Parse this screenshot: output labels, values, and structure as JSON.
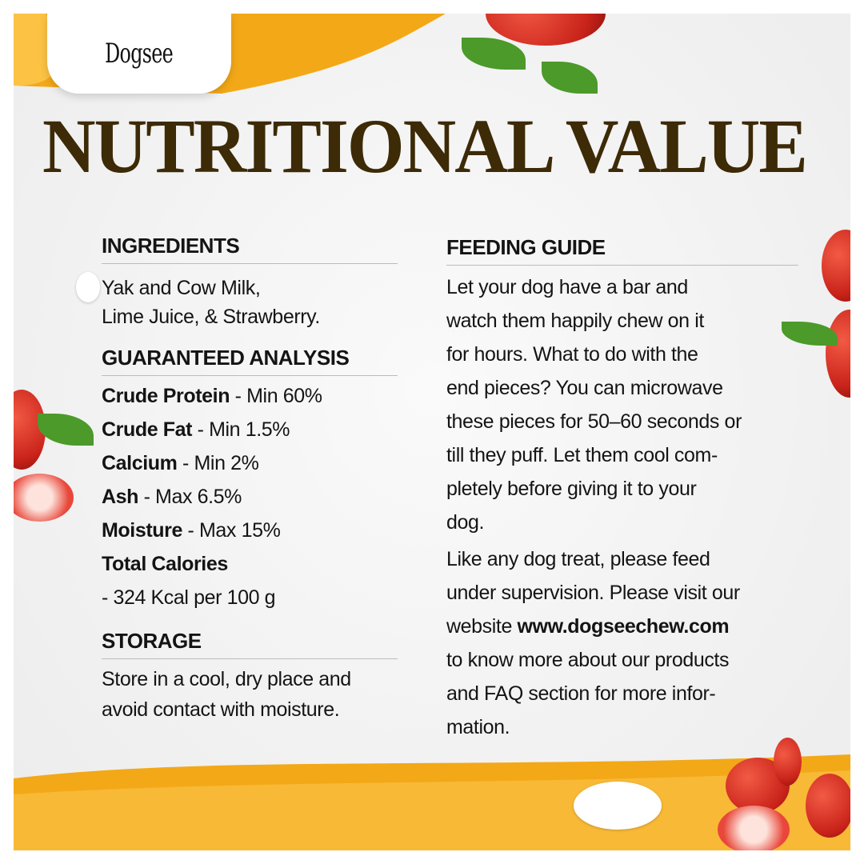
{
  "brand": {
    "logo": "Dogsee"
  },
  "title": "NUTRITIONAL VALUE",
  "ingredients": {
    "heading": "INGREDIENTS",
    "lines": [
      "Yak and Cow Milk,",
      "Lime Juice, & Strawberry."
    ]
  },
  "analysis": {
    "heading": "GUARANTEED ANALYSIS",
    "items": [
      {
        "name": "Crude Protein",
        "value": " - Min 60%"
      },
      {
        "name": "Crude Fat",
        "value": " - Min 1.5%"
      },
      {
        "name": "Calcium",
        "value": " - Min 2%"
      },
      {
        "name": "Ash",
        "value": " - Max 6.5%"
      },
      {
        "name": "Moisture",
        "value": " - Max 15%"
      },
      {
        "name": "Total Calories",
        "value": ""
      }
    ],
    "calories": "- 324 Kcal per 100 g"
  },
  "storage": {
    "heading": "STORAGE",
    "lines": [
      "Store in a cool, dry place and",
      "avoid contact with moisture."
    ]
  },
  "feeding": {
    "heading": "FEEDING GUIDE",
    "para1": [
      "Let your dog have a bar and",
      "watch them happily chew on it",
      "for hours. What to do with the",
      "end pieces? You can microwave",
      "these pieces for 50–60 seconds or",
      "till they puff. Let them cool com-",
      "pletely before giving it to your",
      "dog."
    ],
    "para2_lines": [
      "Like any dog treat, please feed",
      "under supervision. Please visit our"
    ],
    "website_prefix": "website ",
    "website": "www.dogseechew.com",
    "para2_rest": [
      "to know more about our products",
      "and FAQ section for more infor-",
      "mation."
    ]
  },
  "colors": {
    "title": "#3d2a06",
    "accent": "#f2a516"
  }
}
